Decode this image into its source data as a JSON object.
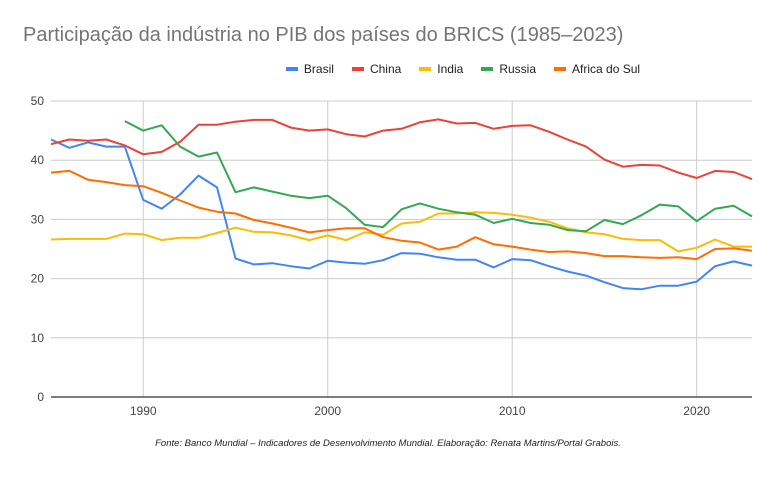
{
  "chart_data": {
    "type": "line",
    "title": "Participação da indústria no PIB dos países do BRICS (1985–2023)",
    "xlabel": "",
    "ylabel": "",
    "xlim": [
      1985,
      2023
    ],
    "ylim": [
      0,
      50
    ],
    "x_ticks": [
      1990,
      2000,
      2010,
      2020
    ],
    "x_tick_labels": [
      "1990",
      "2000",
      "2010",
      "2020"
    ],
    "y_ticks": [
      0,
      10,
      20,
      30,
      40,
      50
    ],
    "y_tick_labels": [
      "0",
      "10",
      "20",
      "30",
      "40",
      "50"
    ],
    "grid": true,
    "legend_position": "top",
    "x": [
      1985,
      1986,
      1987,
      1988,
      1989,
      1990,
      1991,
      1992,
      1993,
      1994,
      1995,
      1996,
      1997,
      1998,
      1999,
      2000,
      2001,
      2002,
      2003,
      2004,
      2005,
      2006,
      2007,
      2008,
      2009,
      2010,
      2011,
      2012,
      2013,
      2014,
      2015,
      2016,
      2017,
      2018,
      2019,
      2020,
      2021,
      2022,
      2023
    ],
    "series": [
      {
        "name": "Brasil",
        "color": "#4285f4",
        "values": [
          43.5,
          42.1,
          43.0,
          42.3,
          42.3,
          33.3,
          31.8,
          34.2,
          37.4,
          35.4,
          23.4,
          22.4,
          22.6,
          22.1,
          21.7,
          23.0,
          22.7,
          22.5,
          23.1,
          24.3,
          24.2,
          23.6,
          23.2,
          23.2,
          21.9,
          23.3,
          23.1,
          22.1,
          21.2,
          20.5,
          19.4,
          18.4,
          18.2,
          18.8,
          18.8,
          19.5,
          22.1,
          22.9,
          22.2
        ]
      },
      {
        "name": "China",
        "color": "#ea4335",
        "values": [
          42.7,
          43.5,
          43.3,
          43.5,
          42.5,
          41.0,
          41.4,
          43.1,
          46.0,
          46.0,
          46.5,
          46.8,
          46.8,
          45.5,
          45.0,
          45.2,
          44.4,
          44.0,
          45.0,
          45.3,
          46.4,
          46.9,
          46.2,
          46.3,
          45.3,
          45.8,
          45.9,
          44.8,
          43.5,
          42.3,
          40.1,
          38.9,
          39.2,
          39.1,
          37.9,
          37.0,
          38.2,
          38.0,
          36.8
        ]
      },
      {
        "name": "India",
        "color": "#fbbc04",
        "values": [
          26.6,
          26.7,
          26.7,
          26.7,
          27.6,
          27.5,
          26.5,
          26.9,
          26.9,
          27.7,
          28.6,
          27.9,
          27.8,
          27.3,
          26.5,
          27.3,
          26.5,
          27.8,
          27.4,
          29.3,
          29.6,
          31.0,
          31.0,
          31.2,
          31.1,
          30.8,
          30.3,
          29.6,
          28.5,
          27.8,
          27.5,
          26.7,
          26.5,
          26.5,
          24.6,
          25.2,
          26.6,
          25.4,
          25.4
        ]
      },
      {
        "name": "Russia",
        "color": "#34a853",
        "values": [
          null,
          null,
          null,
          null,
          46.6,
          45.0,
          45.9,
          42.3,
          40.6,
          41.3,
          34.6,
          35.4,
          34.7,
          34.0,
          33.6,
          34.0,
          31.9,
          29.1,
          28.7,
          31.7,
          32.7,
          31.8,
          31.2,
          30.8,
          29.4,
          30.1,
          29.4,
          29.1,
          28.2,
          28.0,
          29.9,
          29.2,
          30.7,
          32.5,
          32.2,
          29.7,
          31.8,
          32.3,
          30.5
        ]
      },
      {
        "name": "Africa do Sul",
        "color": "#ff6d01",
        "values": [
          37.9,
          38.2,
          36.7,
          36.3,
          35.8,
          35.6,
          34.5,
          33.2,
          32.0,
          31.3,
          31.0,
          29.9,
          29.3,
          28.6,
          27.8,
          28.2,
          28.5,
          28.5,
          27.0,
          26.4,
          26.1,
          24.9,
          25.4,
          27.0,
          25.8,
          25.4,
          24.9,
          24.5,
          24.6,
          24.3,
          23.8,
          23.8,
          23.6,
          23.5,
          23.6,
          23.3,
          25.0,
          25.1,
          24.7
        ]
      }
    ],
    "source_note": "Fonte: Banco Mundial – Indicadores de Desenvolvimento Mundial. Elaboração: Renata Martins/Portal Grabois."
  }
}
